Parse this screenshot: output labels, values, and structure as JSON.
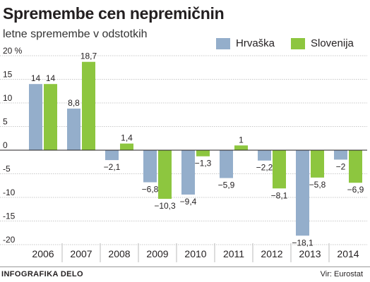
{
  "title": "Spremembe cen nepremičnin",
  "subtitle": "letne spremembe v odstotkih",
  "footer": {
    "left": "INFOGRAFIKA DELO",
    "right": "Vir: Eurostat"
  },
  "colors": {
    "Hrvaška": "#94aecb",
    "Slovenija": "#8dc63f"
  },
  "chart_data": {
    "type": "bar",
    "title": "Spremembe cen nepremičnin",
    "subtitle": "letne spremembe v odstotkih",
    "categories": [
      "2006",
      "2007",
      "2008",
      "2009",
      "2010",
      "2011",
      "2012",
      "2013",
      "2014"
    ],
    "series": [
      {
        "name": "Hrvaška",
        "values": [
          14,
          8.8,
          -2.1,
          -6.8,
          -9.4,
          -5.9,
          -2.2,
          -18.1,
          -2
        ]
      },
      {
        "name": "Slovenija",
        "values": [
          14,
          18.7,
          1.4,
          -10.3,
          -1.3,
          1,
          -8.1,
          -5.8,
          -6.9
        ]
      }
    ],
    "data_labels": [
      [
        "14",
        "8,8",
        "−2,1",
        "−6,8",
        "−9,4",
        "−5,9",
        "−2,2",
        "−18,1",
        "−2"
      ],
      [
        "14",
        "18,7",
        "1,4",
        "−10,3",
        "−1,3",
        "1",
        "−8,1",
        "−5,8",
        "−6,9"
      ]
    ],
    "yticks": [
      20,
      15,
      10,
      5,
      0,
      -5,
      -10,
      -15,
      -20
    ],
    "ytick_labels": [
      "20 %",
      "15",
      "10",
      "5",
      "0",
      "-5",
      "-10",
      "-15",
      "-20"
    ],
    "ylim": [
      -20,
      20
    ],
    "grid": true,
    "legend": "top-right"
  }
}
